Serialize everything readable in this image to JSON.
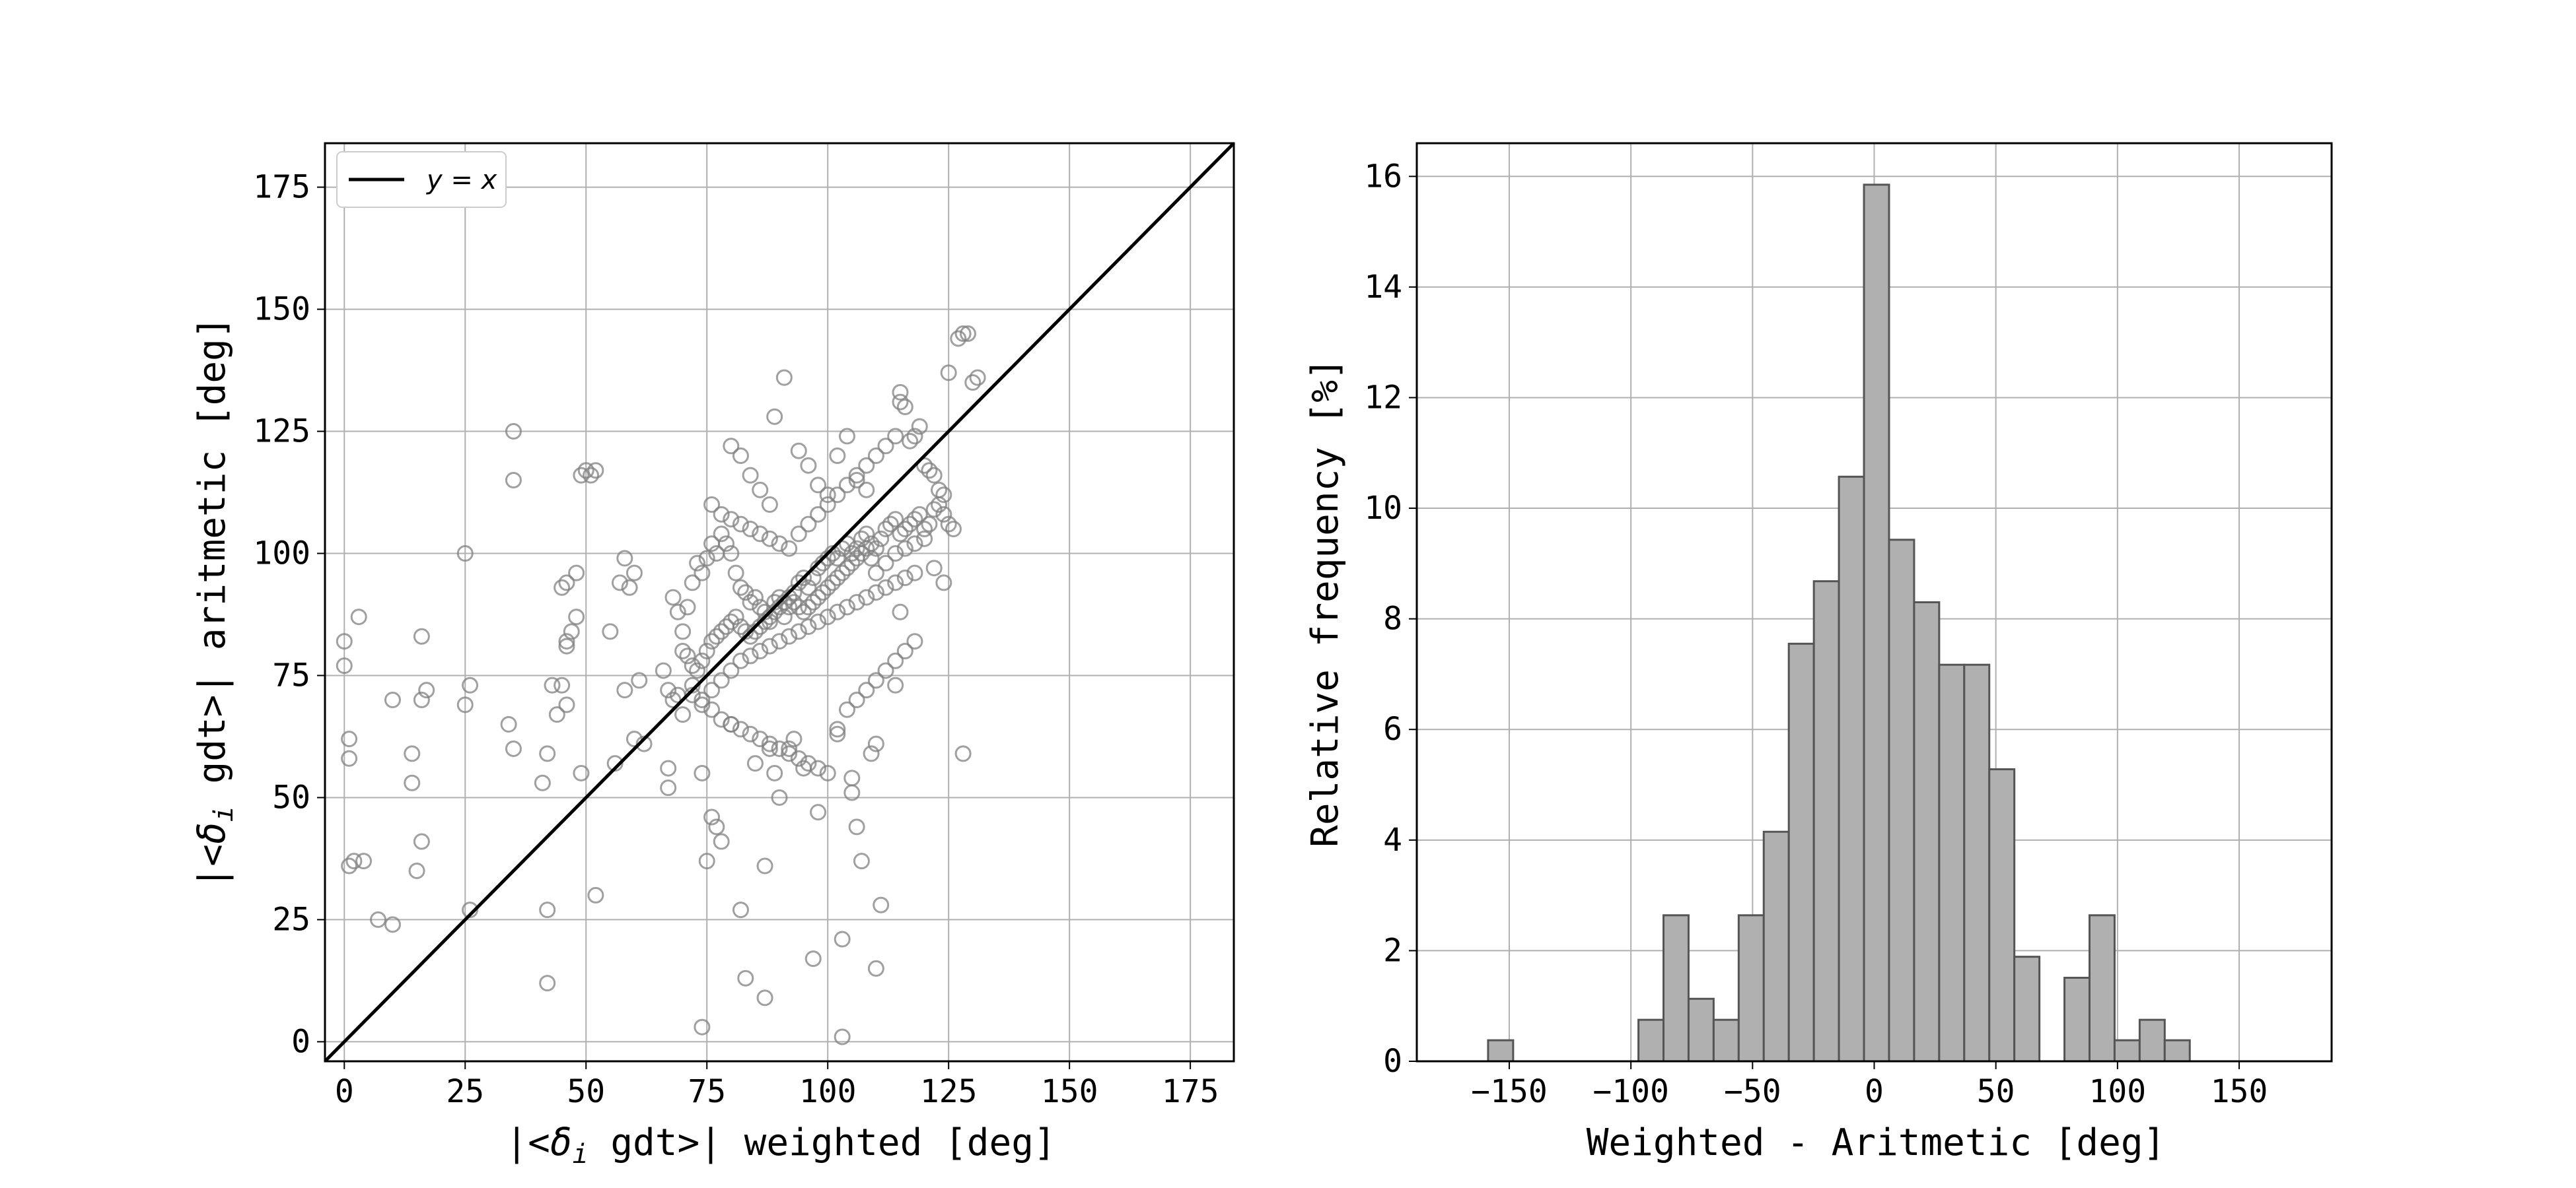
{
  "chart_data": [
    {
      "type": "scatter",
      "xlabel_parts": [
        "|<",
        "δ",
        "i",
        " gdt>| weighted [deg]"
      ],
      "ylabel_parts": [
        "|<",
        "δ",
        "i",
        " gdt>| aritmetic [deg]"
      ],
      "xlim": [
        -4,
        184
      ],
      "ylim": [
        -4,
        184
      ],
      "xticks": [
        "0",
        "25",
        "50",
        "75",
        "100",
        "125",
        "150",
        "175"
      ],
      "yticks": [
        "0",
        "25",
        "50",
        "75",
        "100",
        "125",
        "150",
        "175"
      ],
      "grid": true,
      "legend": {
        "position": "top-left",
        "entries": [
          {
            "label": "y = x",
            "style": "line",
            "color": "#000000"
          }
        ]
      },
      "reference_line": {
        "name": "y = x",
        "slope": 1,
        "intercept": 0
      },
      "marker_color": "#808080",
      "points": [
        [
          0,
          82
        ],
        [
          0,
          77
        ],
        [
          1,
          62
        ],
        [
          1,
          58
        ],
        [
          3,
          87
        ],
        [
          1,
          36
        ],
        [
          2,
          37
        ],
        [
          4,
          37
        ],
        [
          7,
          25
        ],
        [
          10,
          24
        ],
        [
          10,
          70
        ],
        [
          14,
          59
        ],
        [
          14,
          53
        ],
        [
          16,
          83
        ],
        [
          16,
          70
        ],
        [
          17,
          72
        ],
        [
          16,
          41
        ],
        [
          15,
          35
        ],
        [
          25,
          100
        ],
        [
          25,
          69
        ],
        [
          26,
          73
        ],
        [
          26,
          27
        ],
        [
          35,
          125
        ],
        [
          35,
          115
        ],
        [
          34,
          65
        ],
        [
          35,
          60
        ],
        [
          42,
          27
        ],
        [
          42,
          12
        ],
        [
          41,
          53
        ],
        [
          42,
          59
        ],
        [
          43,
          73
        ],
        [
          44,
          67
        ],
        [
          45,
          93
        ],
        [
          46,
          94
        ],
        [
          46,
          82
        ],
        [
          46,
          81
        ],
        [
          45,
          73
        ],
        [
          46,
          69
        ],
        [
          47,
          84
        ],
        [
          48,
          96
        ],
        [
          48,
          87
        ],
        [
          49,
          116
        ],
        [
          50,
          117
        ],
        [
          52,
          117
        ],
        [
          51,
          116
        ],
        [
          49,
          55
        ],
        [
          52,
          30
        ],
        [
          55,
          84
        ],
        [
          56,
          57
        ],
        [
          57,
          94
        ],
        [
          58,
          99
        ],
        [
          58,
          72
        ],
        [
          59,
          93
        ],
        [
          60,
          62
        ],
        [
          61,
          74
        ],
        [
          60,
          96
        ],
        [
          62,
          61
        ],
        [
          68,
          91
        ],
        [
          69,
          88
        ],
        [
          70,
          84
        ],
        [
          71,
          89
        ],
        [
          72,
          94
        ],
        [
          73,
          98
        ],
        [
          74,
          96
        ],
        [
          75,
          99
        ],
        [
          76,
          102
        ],
        [
          77,
          100
        ],
        [
          78,
          104
        ],
        [
          79,
          102
        ],
        [
          80,
          100
        ],
        [
          81,
          96
        ],
        [
          82,
          93
        ],
        [
          83,
          92
        ],
        [
          84,
          90
        ],
        [
          85,
          91
        ],
        [
          86,
          89
        ],
        [
          87,
          88
        ],
        [
          88,
          86
        ],
        [
          89,
          90
        ],
        [
          90,
          91
        ],
        [
          91,
          87
        ],
        [
          92,
          89
        ],
        [
          93,
          92
        ],
        [
          94,
          94
        ],
        [
          95,
          95
        ],
        [
          96,
          93
        ],
        [
          97,
          95
        ],
        [
          98,
          97
        ],
        [
          99,
          98
        ],
        [
          100,
          99
        ],
        [
          101,
          100
        ],
        [
          102,
          99
        ],
        [
          103,
          101
        ],
        [
          104,
          102
        ],
        [
          105,
          100
        ],
        [
          106,
          101
        ],
        [
          107,
          103
        ],
        [
          108,
          104
        ],
        [
          109,
          102
        ],
        [
          110,
          101
        ],
        [
          111,
          103
        ],
        [
          112,
          105
        ],
        [
          113,
          106
        ],
        [
          114,
          107
        ],
        [
          115,
          104
        ],
        [
          116,
          105
        ],
        [
          117,
          106
        ],
        [
          118,
          107
        ],
        [
          119,
          108
        ],
        [
          120,
          105
        ],
        [
          121,
          106
        ],
        [
          122,
          109
        ],
        [
          123,
          110
        ],
        [
          124,
          108
        ],
        [
          125,
          106
        ],
        [
          126,
          105
        ],
        [
          70,
          80
        ],
        [
          71,
          79
        ],
        [
          72,
          77
        ],
        [
          73,
          76
        ],
        [
          74,
          78
        ],
        [
          75,
          80
        ],
        [
          76,
          82
        ],
        [
          77,
          83
        ],
        [
          78,
          84
        ],
        [
          79,
          85
        ],
        [
          80,
          86
        ],
        [
          81,
          87
        ],
        [
          82,
          85
        ],
        [
          83,
          84
        ],
        [
          84,
          83
        ],
        [
          85,
          84
        ],
        [
          86,
          85
        ],
        [
          87,
          86
        ],
        [
          88,
          87
        ],
        [
          89,
          88
        ],
        [
          90,
          89
        ],
        [
          91,
          90
        ],
        [
          92,
          91
        ],
        [
          93,
          90
        ],
        [
          94,
          89
        ],
        [
          95,
          88
        ],
        [
          96,
          89
        ],
        [
          97,
          90
        ],
        [
          98,
          91
        ],
        [
          99,
          92
        ],
        [
          100,
          93
        ],
        [
          101,
          94
        ],
        [
          102,
          95
        ],
        [
          103,
          96
        ],
        [
          104,
          97
        ],
        [
          105,
          98
        ],
        [
          106,
          99
        ],
        [
          107,
          100
        ],
        [
          108,
          101
        ],
        [
          66,
          76
        ],
        [
          67,
          72
        ],
        [
          68,
          70
        ],
        [
          69,
          71
        ],
        [
          70,
          67
        ],
        [
          72,
          73
        ],
        [
          74,
          70
        ],
        [
          76,
          72
        ],
        [
          78,
          74
        ],
        [
          80,
          76
        ],
        [
          82,
          78
        ],
        [
          84,
          79
        ],
        [
          86,
          80
        ],
        [
          88,
          81
        ],
        [
          90,
          82
        ],
        [
          92,
          83
        ],
        [
          94,
          84
        ],
        [
          96,
          85
        ],
        [
          98,
          86
        ],
        [
          100,
          87
        ],
        [
          102,
          88
        ],
        [
          104,
          89
        ],
        [
          106,
          90
        ],
        [
          108,
          91
        ],
        [
          110,
          92
        ],
        [
          112,
          93
        ],
        [
          114,
          94
        ],
        [
          116,
          95
        ],
        [
          118,
          96
        ],
        [
          76,
          110
        ],
        [
          78,
          108
        ],
        [
          80,
          107
        ],
        [
          82,
          106
        ],
        [
          84,
          105
        ],
        [
          86,
          104
        ],
        [
          88,
          103
        ],
        [
          90,
          102
        ],
        [
          92,
          101
        ],
        [
          94,
          104
        ],
        [
          96,
          106
        ],
        [
          98,
          108
        ],
        [
          100,
          110
        ],
        [
          102,
          112
        ],
        [
          104,
          114
        ],
        [
          106,
          116
        ],
        [
          108,
          118
        ],
        [
          110,
          120
        ],
        [
          112,
          122
        ],
        [
          114,
          124
        ],
        [
          115,
          133
        ],
        [
          115,
          131
        ],
        [
          116,
          130
        ],
        [
          117,
          123
        ],
        [
          118,
          124
        ],
        [
          119,
          126
        ],
        [
          120,
          118
        ],
        [
          121,
          117
        ],
        [
          122,
          116
        ],
        [
          123,
          113
        ],
        [
          124,
          112
        ],
        [
          125,
          137
        ],
        [
          127,
          144
        ],
        [
          128,
          145
        ],
        [
          129,
          145
        ],
        [
          130,
          135
        ],
        [
          131,
          136
        ],
        [
          80,
          122
        ],
        [
          82,
          120
        ],
        [
          84,
          116
        ],
        [
          86,
          113
        ],
        [
          88,
          110
        ],
        [
          89,
          128
        ],
        [
          91,
          136
        ],
        [
          94,
          121
        ],
        [
          96,
          118
        ],
        [
          98,
          114
        ],
        [
          100,
          112
        ],
        [
          102,
          120
        ],
        [
          104,
          124
        ],
        [
          106,
          115
        ],
        [
          108,
          113
        ],
        [
          109,
          99
        ],
        [
          110,
          96
        ],
        [
          112,
          98
        ],
        [
          114,
          100
        ],
        [
          116,
          101
        ],
        [
          118,
          102
        ],
        [
          120,
          103
        ],
        [
          122,
          97
        ],
        [
          124,
          94
        ],
        [
          72,
          71
        ],
        [
          74,
          69
        ],
        [
          76,
          68
        ],
        [
          78,
          66
        ],
        [
          80,
          65
        ],
        [
          82,
          64
        ],
        [
          84,
          63
        ],
        [
          86,
          62
        ],
        [
          88,
          61
        ],
        [
          90,
          60
        ],
        [
          92,
          59
        ],
        [
          94,
          58
        ],
        [
          96,
          57
        ],
        [
          98,
          56
        ],
        [
          100,
          55
        ],
        [
          102,
          64
        ],
        [
          104,
          68
        ],
        [
          106,
          70
        ],
        [
          108,
          72
        ],
        [
          110,
          74
        ],
        [
          112,
          76
        ],
        [
          114,
          78
        ],
        [
          116,
          80
        ],
        [
          118,
          82
        ],
        [
          67,
          56
        ],
        [
          67,
          52
        ],
        [
          74,
          55
        ],
        [
          75,
          37
        ],
        [
          76,
          46
        ],
        [
          77,
          44
        ],
        [
          78,
          41
        ],
        [
          80,
          65
        ],
        [
          82,
          27
        ],
        [
          83,
          13
        ],
        [
          85,
          57
        ],
        [
          87,
          36
        ],
        [
          87,
          9
        ],
        [
          88,
          60
        ],
        [
          89,
          55
        ],
        [
          90,
          50
        ],
        [
          92,
          60
        ],
        [
          93,
          62
        ],
        [
          95,
          56
        ],
        [
          97,
          17
        ],
        [
          98,
          47
        ],
        [
          102,
          63
        ],
        [
          103,
          21
        ],
        [
          103,
          1
        ],
        [
          105,
          54
        ],
        [
          105,
          51
        ],
        [
          106,
          44
        ],
        [
          107,
          37
        ],
        [
          109,
          59
        ],
        [
          110,
          61
        ],
        [
          110,
          15
        ],
        [
          111,
          28
        ],
        [
          114,
          73
        ],
        [
          115,
          88
        ],
        [
          128,
          59
        ],
        [
          74,
          3
        ]
      ]
    },
    {
      "type": "histogram",
      "xlabel": "Weighted - Aritmetic [deg]",
      "ylabel": "Relative frequency [%]",
      "xlim": [
        -188,
        188
      ],
      "ylim": [
        0,
        16.6
      ],
      "xticks": [
        "−150",
        "−100",
        "−50",
        "0",
        "50",
        "100",
        "150"
      ],
      "xtick_values": [
        -150,
        -100,
        -50,
        0,
        50,
        100,
        150
      ],
      "yticks": [
        "0",
        "2",
        "4",
        "6",
        "8",
        "10",
        "12",
        "14",
        "16"
      ],
      "grid": true,
      "bar_color": "#b0b0b0",
      "edge_color": "#555555",
      "bin_width": 10.3,
      "bins": [
        {
          "left": -158.7,
          "value": 0.38
        },
        {
          "left": -148.4,
          "value": 0
        },
        {
          "left": -138.1,
          "value": 0
        },
        {
          "left": -127.8,
          "value": 0
        },
        {
          "left": -117.5,
          "value": 0
        },
        {
          "left": -107.2,
          "value": 0
        },
        {
          "left": -96.9,
          "value": 0.75
        },
        {
          "left": -86.6,
          "value": 2.64
        },
        {
          "left": -76.3,
          "value": 1.13
        },
        {
          "left": -66.0,
          "value": 0.75
        },
        {
          "left": -55.7,
          "value": 2.64
        },
        {
          "left": -45.4,
          "value": 4.15
        },
        {
          "left": -35.1,
          "value": 7.55
        },
        {
          "left": -24.8,
          "value": 8.68
        },
        {
          "left": -14.5,
          "value": 10.57
        },
        {
          "left": -4.2,
          "value": 15.85
        },
        {
          "left": 6.1,
          "value": 9.43
        },
        {
          "left": 16.4,
          "value": 8.3
        },
        {
          "left": 26.7,
          "value": 7.17
        },
        {
          "left": 37.0,
          "value": 7.17
        },
        {
          "left": 47.3,
          "value": 5.28
        },
        {
          "left": 57.6,
          "value": 1.89
        },
        {
          "left": 67.9,
          "value": 0
        },
        {
          "left": 78.2,
          "value": 1.51
        },
        {
          "left": 88.5,
          "value": 2.64
        },
        {
          "left": 98.8,
          "value": 0.38
        },
        {
          "left": 109.1,
          "value": 0.75
        },
        {
          "left": 119.4,
          "value": 0.38
        },
        {
          "left": 129.7,
          "value": 0
        },
        {
          "left": 140.0,
          "value": 0
        },
        {
          "left": 150.3,
          "value": 0
        },
        {
          "left": 160.6,
          "value": 0
        }
      ]
    }
  ]
}
